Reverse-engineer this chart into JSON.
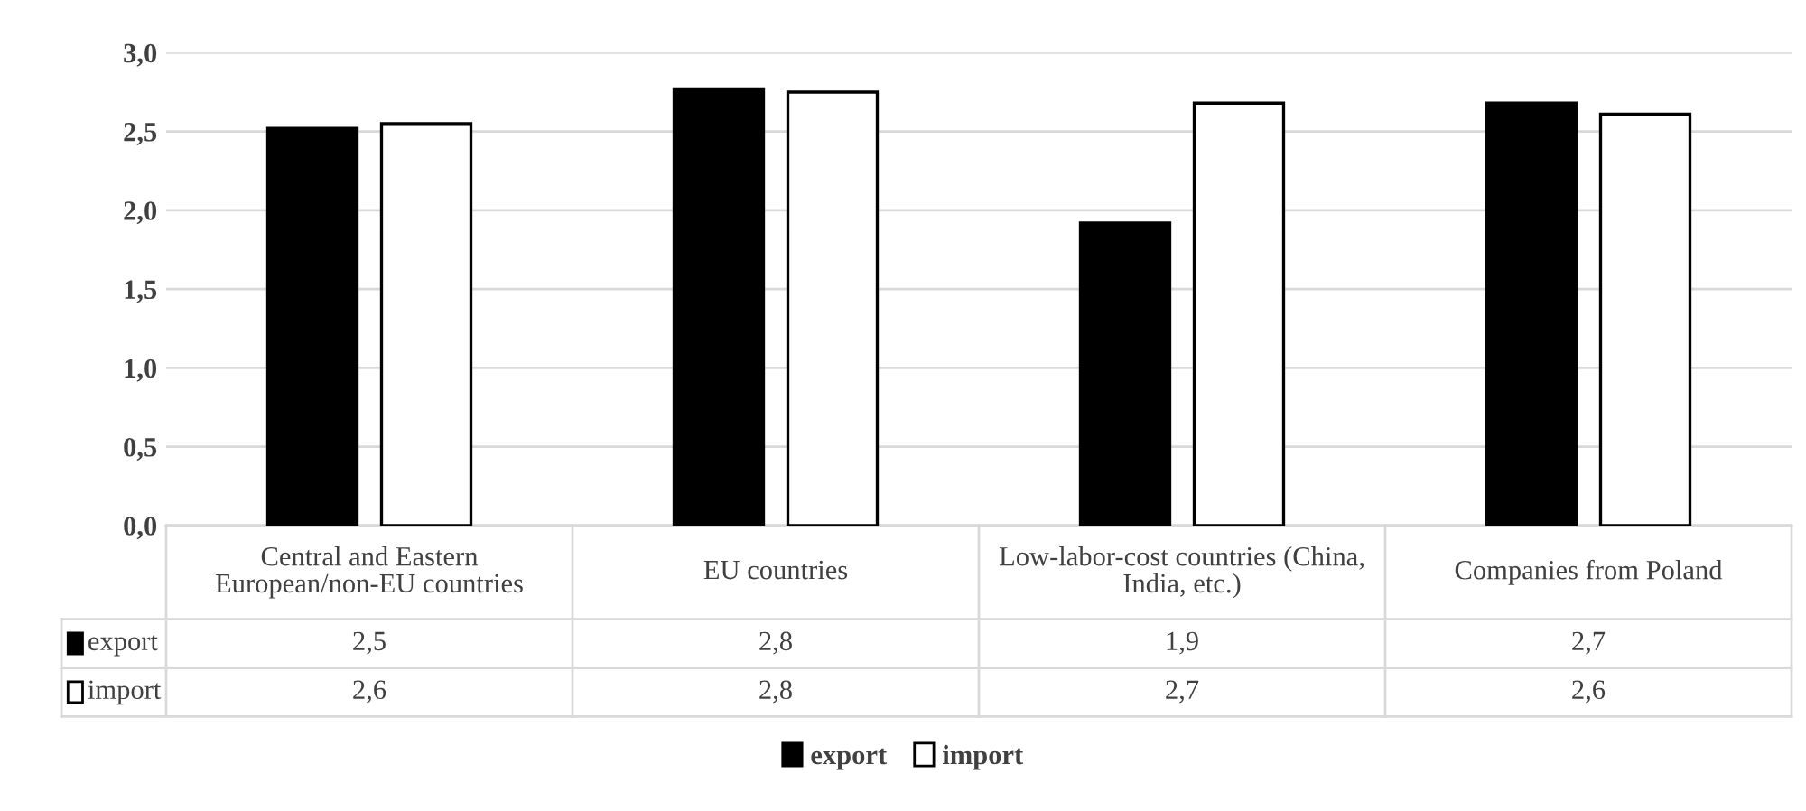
{
  "chart_data": {
    "type": "bar",
    "categories": [
      "Central and Eastern European/non-EU countries",
      "EU countries",
      "Low-labor-cost countries (China, India, etc.)",
      "Companies from Poland"
    ],
    "series": [
      {
        "name": "export",
        "color": "#000000",
        "values": [
          2.52,
          2.77,
          1.92,
          2.68
        ],
        "value_labels": [
          "2,5",
          "2,8",
          "1,9",
          "2,7"
        ]
      },
      {
        "name": "import",
        "color": "#ffffff",
        "values": [
          2.55,
          2.75,
          2.68,
          2.61
        ],
        "value_labels": [
          "2,6",
          "2,8",
          "2,7",
          "2,6"
        ]
      }
    ],
    "ylim": [
      0,
      3.0
    ],
    "yticks": [
      {
        "value": 0,
        "label": "0,0"
      },
      {
        "value": 0.5,
        "label": "0,5"
      },
      {
        "value": 1.0,
        "label": "1,0"
      },
      {
        "value": 1.5,
        "label": "1,5"
      },
      {
        "value": 2.0,
        "label": "2,0"
      },
      {
        "value": 2.5,
        "label": "2,5"
      },
      {
        "value": 3.0,
        "label": "3,0"
      }
    ],
    "grid": "y",
    "legend": "bottom"
  }
}
